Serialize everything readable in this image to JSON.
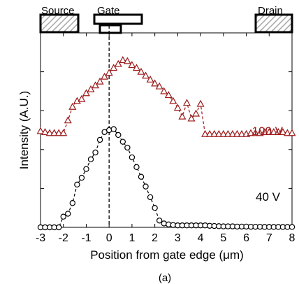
{
  "chart_data": {
    "type": "line",
    "xlabel": "Position from gate edge (μm)",
    "ylabel": "Intensity (A.U.)",
    "caption": "(a)",
    "xlim": [
      -3,
      8
    ],
    "ylim": [
      0,
      10
    ],
    "xticks": [
      -3,
      -2,
      -1,
      0,
      1,
      2,
      3,
      4,
      5,
      6,
      7,
      8
    ],
    "xtick_labels": [
      "-3",
      "-2",
      "-1",
      "0",
      "1",
      "2",
      "3",
      "4",
      "5",
      "6",
      "7",
      "8"
    ],
    "grid": false,
    "gate_edge_x": 0,
    "device_labels": {
      "source": "Source",
      "gate": "Gate",
      "drain": "Drain"
    },
    "colors": {
      "series_100v": "#9b1b1b",
      "series_40v": "#000000",
      "hatch": "#a8a8a8"
    },
    "series": [
      {
        "name": "100 V",
        "marker": "triangle",
        "x": [
          -3.0,
          -2.8,
          -2.6,
          -2.4,
          -2.2,
          -2.0,
          -1.8,
          -1.6,
          -1.4,
          -1.2,
          -1.0,
          -0.8,
          -0.6,
          -0.4,
          -0.2,
          0.0,
          0.2,
          0.4,
          0.6,
          0.8,
          1.0,
          1.2,
          1.4,
          1.6,
          1.8,
          2.0,
          2.2,
          2.4,
          2.6,
          2.8,
          3.0,
          3.2,
          3.4,
          3.6,
          3.8,
          4.0,
          4.2,
          4.4,
          4.6,
          4.8,
          5.0,
          5.2,
          5.4,
          5.6,
          5.8,
          6.0,
          6.2,
          6.4,
          6.6,
          6.8,
          7.0,
          7.2,
          7.4,
          7.6,
          7.8,
          8.0
        ],
        "y": [
          4.95,
          4.9,
          4.85,
          4.85,
          4.85,
          4.85,
          5.5,
          6.2,
          6.5,
          6.6,
          6.9,
          7.1,
          7.3,
          7.5,
          7.75,
          7.95,
          8.2,
          8.4,
          8.6,
          8.55,
          8.35,
          8.2,
          8.0,
          7.8,
          7.6,
          7.4,
          7.25,
          7.0,
          6.8,
          6.5,
          6.15,
          5.7,
          6.4,
          5.6,
          5.85,
          6.35,
          4.8,
          4.8,
          4.8,
          4.8,
          4.8,
          4.8,
          4.8,
          4.8,
          4.8,
          4.8,
          4.85,
          4.85,
          4.85,
          4.9,
          4.9,
          4.9,
          4.9,
          4.9,
          4.85,
          4.85
        ]
      },
      {
        "name": "40 V",
        "marker": "circle",
        "x": [
          -3.0,
          -2.8,
          -2.6,
          -2.4,
          -2.2,
          -2.0,
          -1.8,
          -1.6,
          -1.4,
          -1.2,
          -1.0,
          -0.8,
          -0.6,
          -0.4,
          -0.2,
          0.0,
          0.2,
          0.4,
          0.6,
          0.8,
          1.0,
          1.2,
          1.4,
          1.6,
          1.8,
          2.0,
          2.2,
          2.4,
          2.6,
          2.8,
          3.0,
          3.2,
          3.4,
          3.6,
          3.8,
          4.0,
          4.2,
          4.4,
          4.6,
          4.8,
          5.0,
          5.2,
          5.4,
          5.6,
          5.8,
          6.0,
          6.2,
          6.4,
          6.6,
          6.8,
          7.0,
          7.2,
          7.4,
          7.6,
          7.8,
          8.0
        ],
        "y": [
          0.0,
          0.0,
          0.0,
          0.0,
          0.0,
          0.55,
          0.7,
          1.25,
          2.2,
          2.55,
          3.0,
          3.5,
          3.85,
          4.5,
          4.9,
          5.0,
          5.05,
          4.75,
          4.4,
          4.1,
          3.6,
          3.1,
          2.6,
          2.1,
          1.55,
          1.0,
          0.35,
          0.2,
          0.15,
          0.12,
          0.1,
          0.1,
          0.1,
          0.1,
          0.1,
          0.1,
          0.1,
          0.08,
          0.07,
          0.06,
          0.05,
          0.05,
          0.05,
          0.04,
          0.04,
          0.04,
          0.03,
          0.03,
          0.03,
          0.02,
          0.02,
          0.02,
          0.02,
          0.02,
          0.02,
          0.02
        ]
      }
    ]
  }
}
